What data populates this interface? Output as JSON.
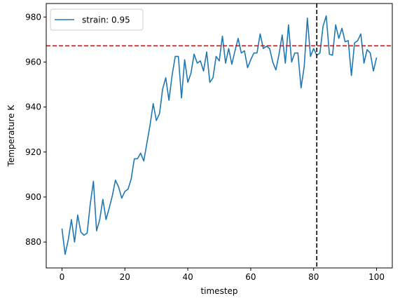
{
  "chart_data": {
    "type": "line",
    "xlabel": "timestep",
    "ylabel": "Temperature K",
    "xlim": [
      -5,
      105
    ],
    "ylim": [
      868.5,
      986
    ],
    "xticks": [
      0,
      20,
      40,
      60,
      80,
      100
    ],
    "yticks": [
      880,
      900,
      920,
      940,
      960,
      980
    ],
    "grid": false,
    "legend_position": "upper-left",
    "series": [
      {
        "name": "strain: 0.95",
        "color": "#1f77b4",
        "x": [
          0,
          1,
          2,
          3,
          4,
          5,
          6,
          7,
          8,
          9,
          10,
          11,
          12,
          13,
          14,
          15,
          16,
          17,
          18,
          19,
          20,
          21,
          22,
          23,
          24,
          25,
          26,
          27,
          28,
          29,
          30,
          31,
          32,
          33,
          34,
          35,
          36,
          37,
          38,
          39,
          40,
          41,
          42,
          43,
          44,
          45,
          46,
          47,
          48,
          49,
          50,
          51,
          52,
          53,
          54,
          55,
          56,
          57,
          58,
          59,
          60,
          61,
          62,
          63,
          64,
          65,
          66,
          67,
          68,
          69,
          70,
          71,
          72,
          73,
          74,
          75,
          76,
          77,
          78,
          79,
          80,
          81,
          82,
          83,
          84,
          85,
          86,
          87,
          88,
          89,
          90,
          91,
          92,
          93,
          94,
          95,
          96,
          97,
          98,
          99,
          100
        ],
        "values": [
          886,
          874.5,
          881,
          890,
          880,
          892,
          884.5,
          883,
          884,
          897,
          907,
          885,
          890,
          899,
          890,
          895,
          900.5,
          907.5,
          904.5,
          899.5,
          902.5,
          903.5,
          908,
          917,
          917,
          919.5,
          916,
          924,
          932,
          941.5,
          934,
          937,
          948,
          953,
          943,
          954,
          962.5,
          962.5,
          944,
          961,
          951,
          955,
          963.5,
          959.5,
          960.5,
          956,
          964.5,
          951,
          953,
          962.5,
          960.5,
          971.5,
          959.5,
          966,
          959,
          965,
          970.5,
          964,
          965,
          957.5,
          961,
          964,
          964,
          972.5,
          966,
          967,
          966,
          960,
          956.5,
          963.5,
          972,
          959.5,
          976.5,
          960,
          964,
          964,
          948.5,
          958,
          979.5,
          962.5,
          966,
          963,
          964,
          976,
          980.5,
          963.5,
          963,
          976.5,
          970.5,
          975,
          969,
          969.5,
          954,
          968.5,
          969.5,
          972.5,
          959.5,
          965.5,
          964,
          956,
          962
        ]
      }
    ],
    "reference_lines": [
      {
        "orientation": "horizontal",
        "value": 967.2,
        "color": "#ff0000",
        "style": "dashed"
      },
      {
        "orientation": "vertical",
        "value": 81,
        "color": "#000000",
        "style": "dashed"
      }
    ]
  }
}
